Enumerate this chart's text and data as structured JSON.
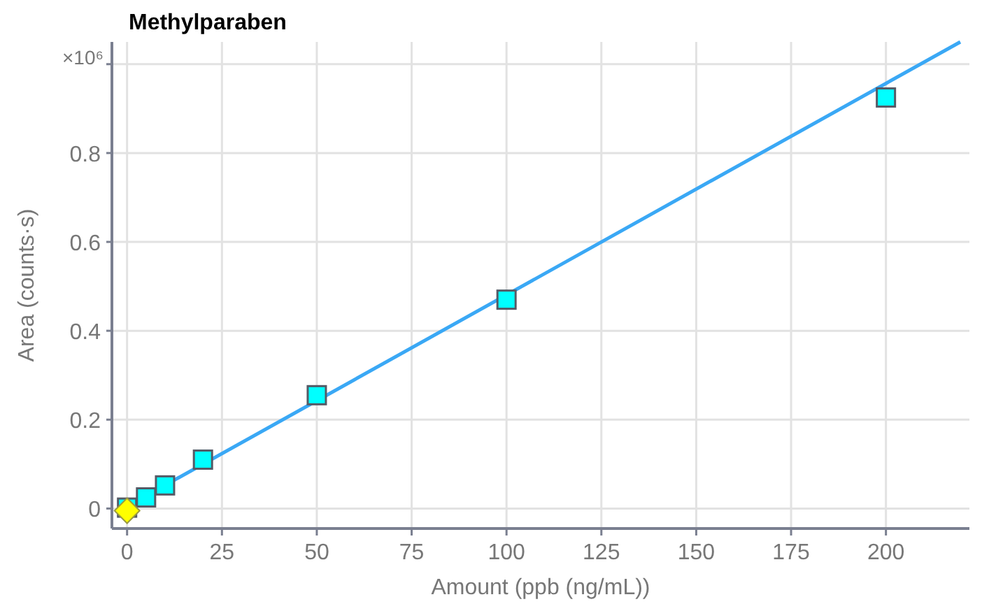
{
  "chart_data": {
    "type": "scatter",
    "title": "Methylparaben",
    "xlabel": "Amount (ppb (ng/mL))",
    "ylabel": "Area (counts·s)",
    "xlim": [
      -4,
      222
    ],
    "xticks": [
      0,
      25,
      50,
      75,
      100,
      125,
      150,
      175,
      200
    ],
    "ylim": [
      -0.045,
      1.05
    ],
    "yticks": [
      0,
      0.2,
      0.4,
      0.6,
      0.8,
      {
        "value": 1,
        "label": null
      }
    ],
    "annotations": [
      "×10⁶"
    ],
    "grid": true,
    "series": [
      {
        "type": "line",
        "color": "#3aa8f5",
        "x": [
          3,
          219.6
        ],
        "values": [
          0.019,
          1.05
        ],
        "marker": "none",
        "line_style": "solid"
      },
      {
        "color": "#00ffff",
        "x": [
          0,
          5,
          10,
          20,
          50,
          100,
          200
        ],
        "values": [
          0.002,
          0.025,
          0.052,
          0.11,
          0.255,
          0.47,
          0.925
        ],
        "marker": "square"
      },
      {
        "color": "#ffff00",
        "x": [
          0
        ],
        "values": [
          -0.005
        ],
        "marker": "diamond"
      }
    ]
  }
}
